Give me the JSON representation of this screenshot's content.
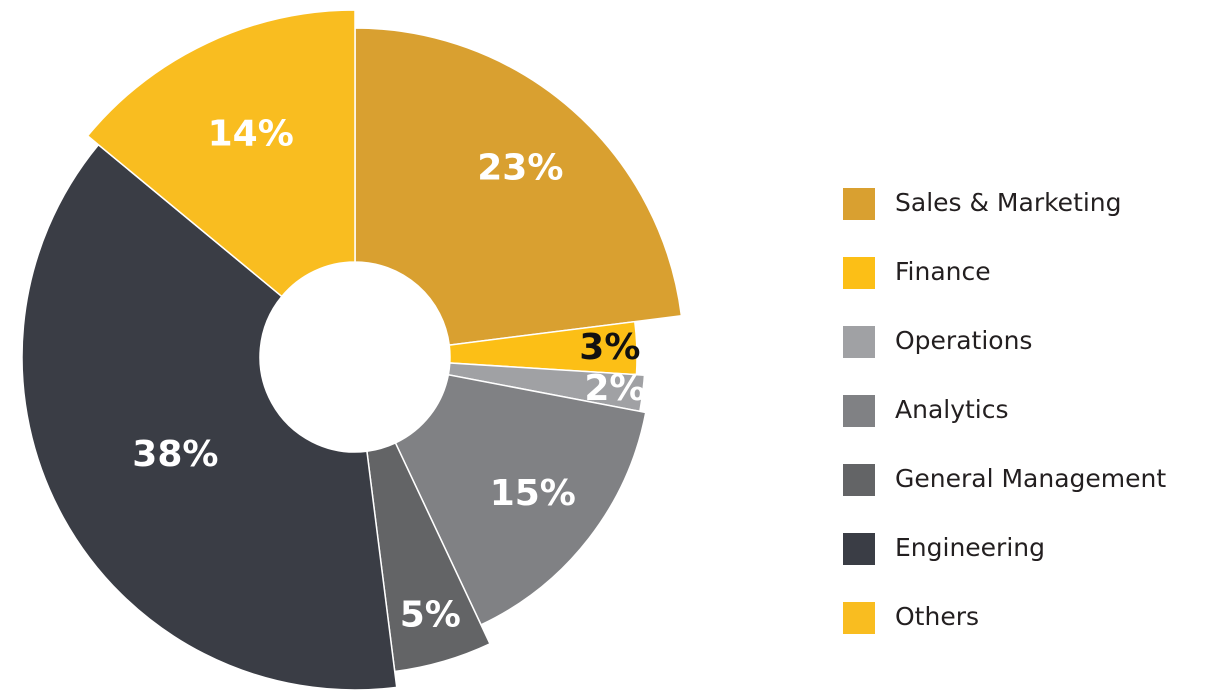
{
  "chart_data": {
    "type": "donut",
    "categories": [
      "Sales & Marketing",
      "Finance",
      "Operations",
      "Analytics",
      "General Management",
      "Engineering",
      "Others"
    ],
    "values": [
      23,
      3,
      2,
      15,
      5,
      38,
      14
    ],
    "value_labels": [
      "23%",
      "3%",
      "2%",
      "15%",
      "5%",
      "38%",
      "14%"
    ],
    "colors": [
      "#d9a030",
      "#fcbf16",
      "#a0a1a4",
      "#808184",
      "#636466",
      "#3a3d45",
      "#f9bd20"
    ],
    "legend": "right"
  }
}
